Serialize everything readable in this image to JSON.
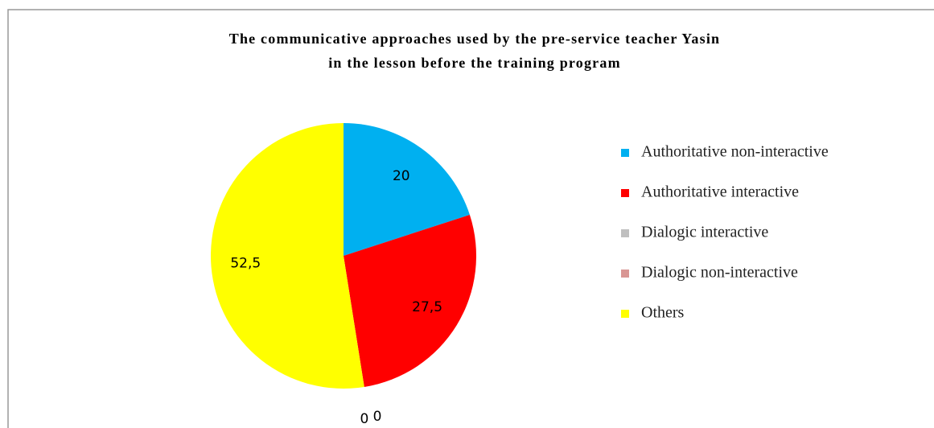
{
  "chart_data": {
    "type": "pie",
    "title": [
      "The communicative approaches used by the pre-service teacher Yasin",
      "in the lesson before the training program"
    ],
    "categories": [
      "Authoritative non-interactive",
      "Authoritative interactive",
      "Dialogic interactive",
      "Dialogic non-interactive",
      "Others"
    ],
    "values": [
      20,
      27.5,
      0,
      0,
      52.5
    ],
    "value_labels": [
      "20",
      "27,5",
      "0",
      "0",
      "52,5"
    ],
    "colors": [
      "#00b0f0",
      "#ff0000",
      "#bfbfbf",
      "#d99694",
      "#ffff00"
    ],
    "legend": "right"
  }
}
